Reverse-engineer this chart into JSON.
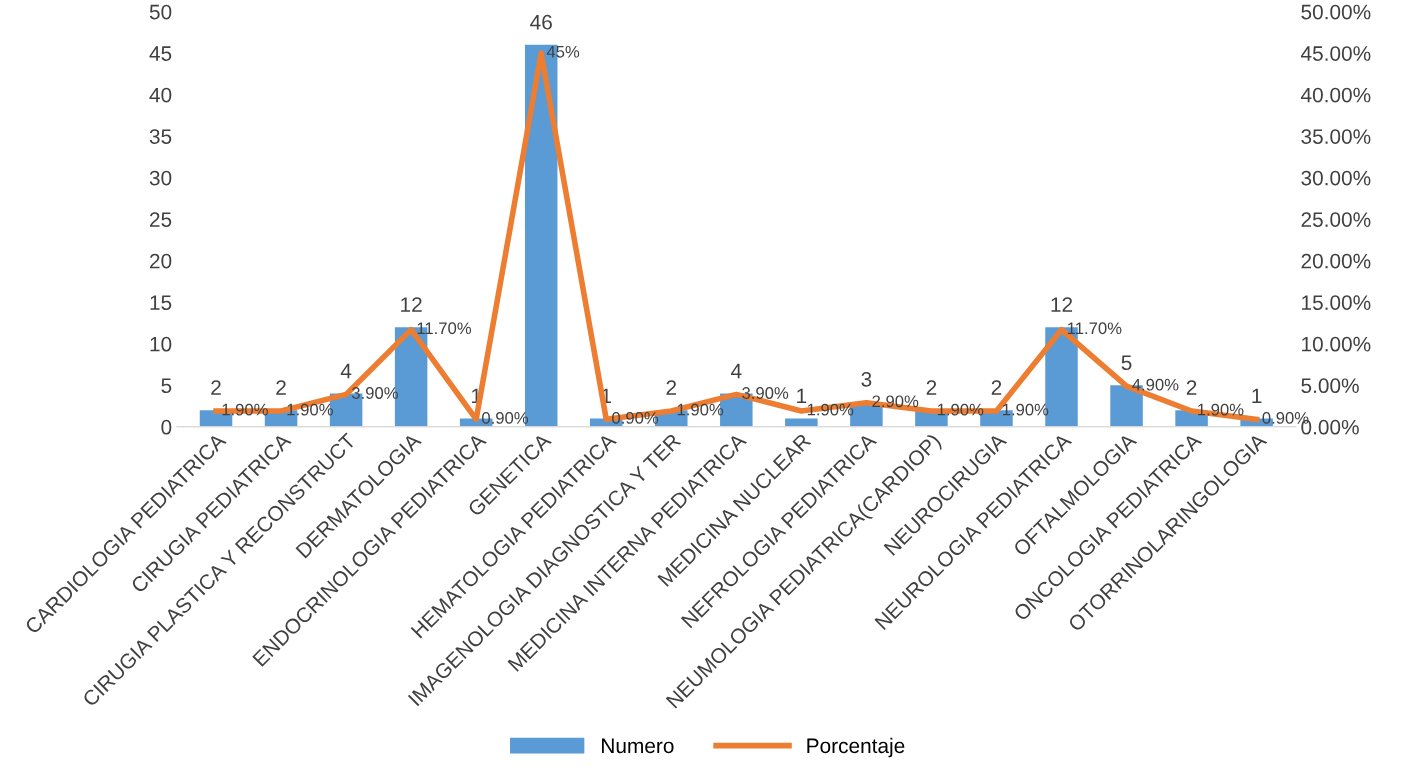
{
  "chart_data": {
    "type": "bar",
    "categories": [
      "CARDIOLOGIA PEDIATRICA",
      "CIRUGIA PEDIATRICA",
      "CIRUGIA PLASTICA Y RECONSTRUCT",
      "DERMATOLOGIA",
      "ENDOCRINOLOGIA PEDIATRICA",
      "GENETICA",
      "HEMATOLOGIA PEDIATRICA",
      "IMAGENOLOGIA DIAGNOSTICA Y TER",
      "MEDICINA INTERNA PEDIATRICA",
      "MEDICINA NUCLEAR",
      "NEFROLOGIA PEDIATRICA",
      "NEUMOLOGIA PEDIATRICA(CARDIOP)",
      "NEUROCIRUGIA",
      "NEUROLOGIA PEDIATRICA",
      "OFTALMOLOGIA",
      "ONCOLOGIA PEDIATRICA",
      "OTORRINOLARINGOLOGIA"
    ],
    "series": [
      {
        "name": "Numero",
        "color": "#5b9bd5",
        "values": [
          2,
          2,
          4,
          12,
          1,
          46,
          1,
          2,
          4,
          1,
          3,
          2,
          2,
          12,
          5,
          2,
          1
        ],
        "value_labels": [
          "2",
          "2",
          "4",
          "12",
          "1",
          "46",
          "1",
          "2",
          "4",
          "1",
          "3",
          "2",
          "2",
          "12",
          "5",
          "2",
          "1"
        ]
      },
      {
        "name": "Porcentaje",
        "type": "line",
        "axis": "y2",
        "color": "#ed7d31",
        "values": [
          1.9,
          1.9,
          3.9,
          11.7,
          0.9,
          45,
          0.9,
          1.9,
          3.9,
          1.9,
          2.9,
          1.9,
          1.9,
          11.7,
          4.9,
          1.9,
          0.9
        ],
        "value_labels": [
          "1.90%",
          "1.90%",
          "3.90%",
          "11.70%",
          "0.90%",
          "45%",
          "0.90%",
          "1.90%",
          "3.90%",
          "1.90%",
          "2.90%",
          "1.90%",
          "1.90%",
          "11.70%",
          "4.90%",
          "1.90%",
          "0.90%"
        ]
      }
    ],
    "ylim": [
      0,
      50
    ],
    "yticks": [
      0,
      5,
      10,
      15,
      20,
      25,
      30,
      35,
      40,
      45,
      50
    ],
    "y2lim": [
      0,
      50
    ],
    "y2ticks": [
      {
        "value": 0,
        "label": "0.00%"
      },
      {
        "value": 5,
        "label": "5.00%"
      },
      {
        "value": 10,
        "label": "10.00%"
      },
      {
        "value": 15,
        "label": "15.00%"
      },
      {
        "value": 20,
        "label": "20.00%"
      },
      {
        "value": 25,
        "label": "25.00%"
      },
      {
        "value": 30,
        "label": "30.00%"
      },
      {
        "value": 35,
        "label": "35.00%"
      },
      {
        "value": 40,
        "label": "40.00%"
      },
      {
        "value": 45,
        "label": "45.00%"
      },
      {
        "value": 50,
        "label": "50.00%"
      }
    ],
    "legend": "bottom",
    "grid": false,
    "marker": "none",
    "line_style": "solid"
  }
}
